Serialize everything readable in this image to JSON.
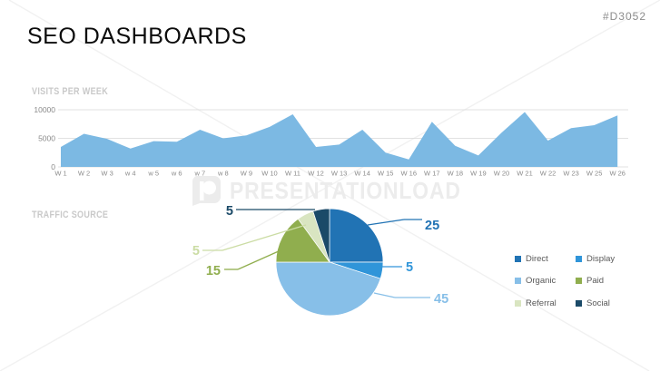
{
  "slide": {
    "title": "SEO DASHBOARDS",
    "id_tag": "#D3052"
  },
  "watermark": {
    "text": "PRESENTATIONLOAD",
    "logo": "presentationload-p-logo"
  },
  "sections": {
    "visits": {
      "heading": "VISITS PER WEEK"
    },
    "traffic": {
      "heading": "TRAFFIC SOURCE"
    }
  },
  "chart_data": [
    {
      "type": "area",
      "title": "VISITS PER WEEK",
      "x": [
        "W 1",
        "W 2",
        "W 3",
        "w 4",
        "w 5",
        "w 6",
        "w 7",
        "w 8",
        "W 9",
        "W 10",
        "W 11",
        "W 12",
        "W 13",
        "W 14",
        "W 15",
        "W 16",
        "W 17",
        "W 18",
        "W 19",
        "W 20",
        "W 21",
        "W 22",
        "W 23",
        "W 25",
        "W 26"
      ],
      "values": [
        3500,
        5800,
        4900,
        3200,
        4500,
        4400,
        6500,
        5000,
        5500,
        7000,
        9200,
        3500,
        3900,
        6500,
        2500,
        1300,
        7900,
        3700,
        2000,
        6000,
        9600,
        4600,
        6800,
        7300,
        9000
      ],
      "xlabel": "",
      "ylabel": "",
      "ylim": [
        0,
        10000
      ],
      "yticks": [
        0,
        5000,
        10000
      ],
      "grid": true,
      "fill_color": "#7CB9E3",
      "tick_color": "#8a8a8a",
      "grid_color": "#d9d9d9",
      "legend_position": "none"
    },
    {
      "type": "pie",
      "title": "TRAFFIC SOURCE",
      "labels": [
        "Direct",
        "Display",
        "Organic",
        "Paid",
        "Referral",
        "Social"
      ],
      "values": [
        25,
        5,
        45,
        15,
        5,
        5
      ],
      "data_labels": [
        "25",
        "5",
        "45",
        "15",
        "5",
        "5"
      ],
      "colors": {
        "Direct": "#2173B4",
        "Display": "#3095D9",
        "Organic": "#87BFE8",
        "Paid": "#90AE4E",
        "Referral": "#D9E5C1",
        "Social": "#1B4A68"
      },
      "callout_label_colors": {
        "Direct": "#2173B4",
        "Display": "#3095D9",
        "Organic": "#87BFE8",
        "Paid": "#90AE4E",
        "Referral": "#CBDCA4",
        "Social": "#1B4A68"
      },
      "start_angle": "12-oclock-clockwise",
      "legend_position": "right",
      "legend_columns": 2
    }
  ]
}
